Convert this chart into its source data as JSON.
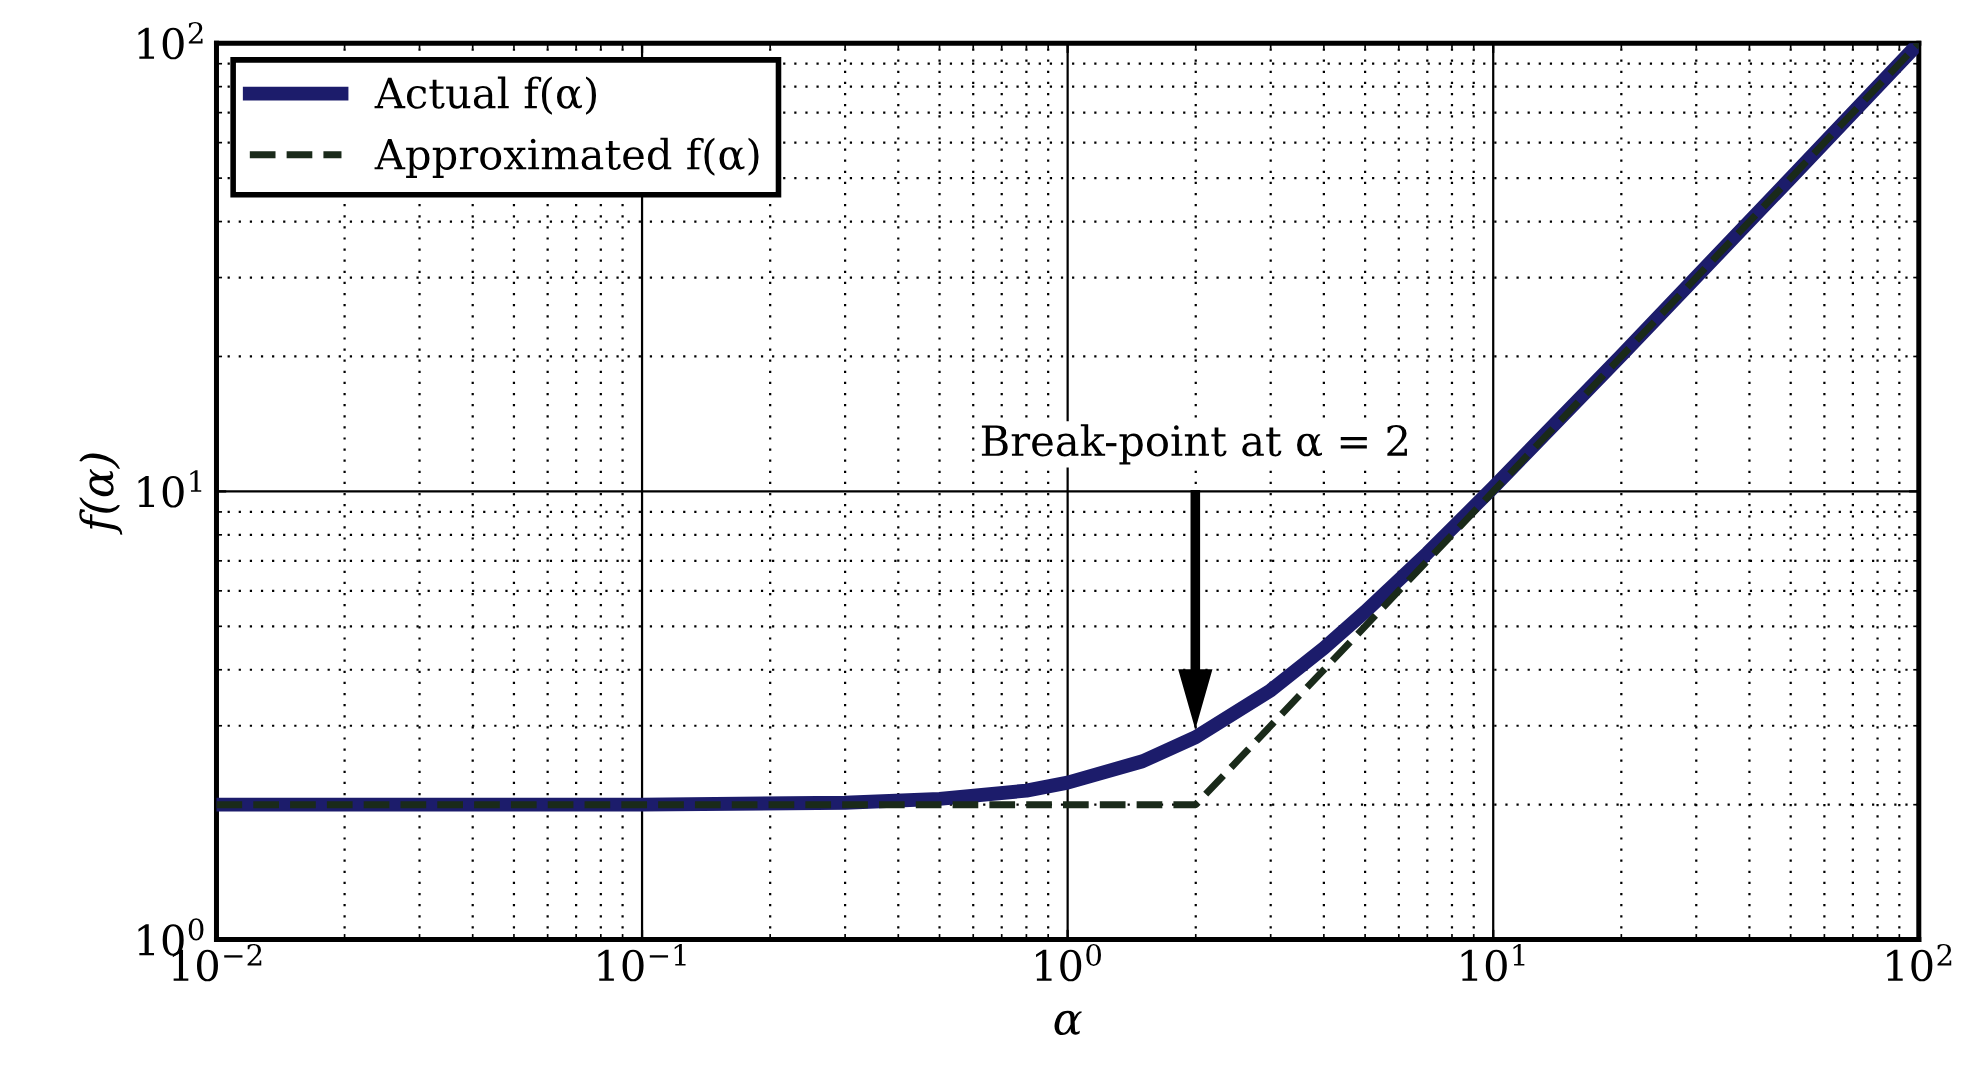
{
  "chart_data": {
    "type": "line",
    "xlabel": "α",
    "ylabel": "f(α)",
    "log": "xy",
    "xlim": [
      0.01,
      100
    ],
    "ylim": [
      1,
      100
    ],
    "xticks": [
      {
        "value": 0.01,
        "label": "10$^{−2}$"
      },
      {
        "value": 0.1,
        "label": "10$^{−1}$"
      },
      {
        "value": 1,
        "label": "10$^{0}$"
      },
      {
        "value": 10,
        "label": "10$^{1}$"
      },
      {
        "value": 100,
        "label": "10$^{2}$"
      }
    ],
    "yticks": [
      {
        "value": 1,
        "label": "10$^{0}$"
      },
      {
        "value": 10,
        "label": "10$^{1}$"
      },
      {
        "value": 100,
        "label": "10$^{2}$"
      }
    ],
    "grid": true,
    "legend": "top left",
    "series": [
      {
        "name": "Actual f(α)",
        "color": "#1c1c6b",
        "line_style": "solid",
        "x": [
          0.01,
          0.1,
          0.3,
          0.5,
          0.8,
          1,
          1.5,
          2,
          3,
          4,
          5,
          7,
          10,
          20,
          50,
          100
        ],
        "values": [
          2,
          2,
          2.02,
          2.06,
          2.15,
          2.24,
          2.5,
          2.83,
          3.6,
          4.47,
          5.39,
          7.28,
          10.2,
          20.1,
          50,
          100
        ]
      },
      {
        "name": "Approximated f(α)",
        "color": "#1a2a1a",
        "line_style": "dashed",
        "x": [
          0.01,
          2,
          100
        ],
        "values": [
          2,
          2,
          100
        ]
      }
    ],
    "annotations": [
      "Break-point at α = 2"
    ]
  }
}
